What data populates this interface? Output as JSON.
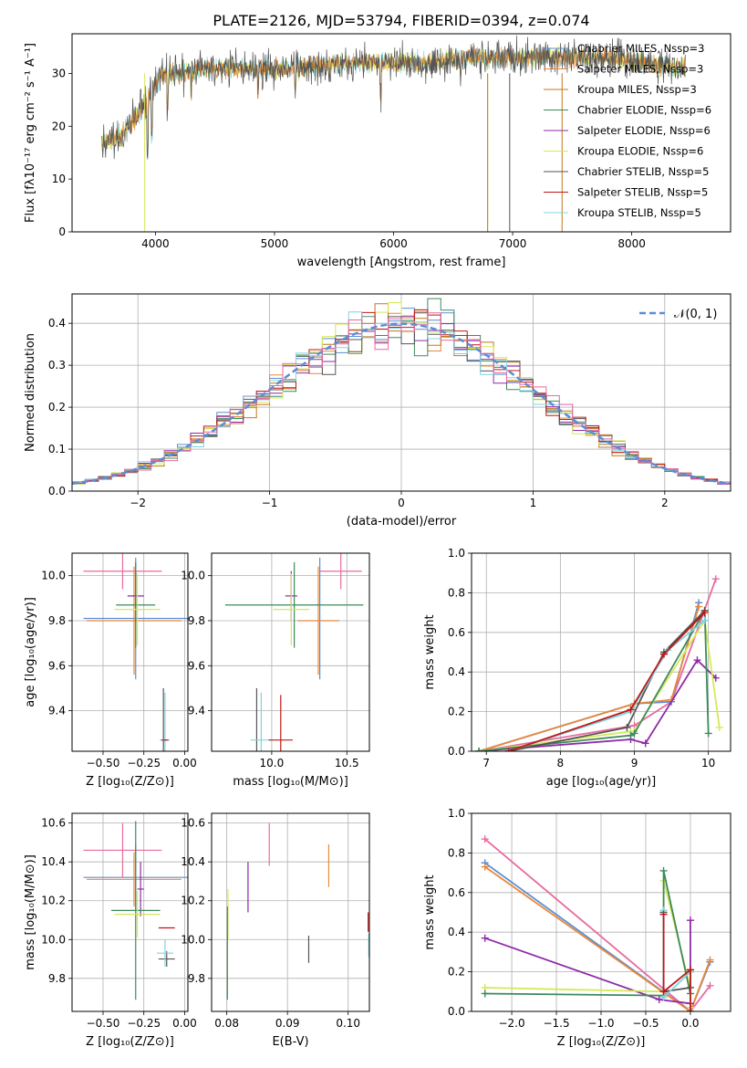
{
  "title": "PLATE=2126, MJD=53794, FIBERID=0394, z=0.074",
  "colors": {
    "Chabrier MILES": "#5b8dd6",
    "Salpeter MILES": "#e8883a",
    "Kroupa MILES": "#c2781f",
    "Chabrier ELODIE": "#3d8a5a",
    "Salpeter ELODIE": "#8e2aa8",
    "Kroupa ELODIE": "#d6e85a",
    "Chabrier STELIB": "#555555",
    "Salpeter STELIB": "#c01818",
    "Kroupa STELIB": "#7fd4e0",
    "pink": "#e86aa0",
    "normal": "#5b8dd6"
  },
  "chart_data": [
    {
      "id": "spectrum",
      "type": "line",
      "xlabel": "wavelength [Angstrom, rest frame]",
      "ylabel": "Flux [fλ10⁻¹⁷ erg cm⁻² s⁻¹ A⁻¹]",
      "xlim": [
        3300,
        8830
      ],
      "ylim": [
        0,
        37.5
      ],
      "xticks": [
        4000,
        5000,
        6000,
        7000,
        8000
      ],
      "yticks": [
        0,
        10,
        20,
        30
      ],
      "grid": false,
      "legend_position": "right",
      "legend": [
        {
          "label": "Chabrier MILES, N_SSP=3",
          "color": "#5b8dd6"
        },
        {
          "label": "Salpeter MILES, N_SSP=3",
          "color": "#e8883a"
        },
        {
          "label": "Kroupa MILES, N_SSP=3",
          "color": "#c2781f"
        },
        {
          "label": "Chabrier ELODIE, N_SSP=6",
          "color": "#3d8a5a"
        },
        {
          "label": "Salpeter ELODIE, N_SSP=6",
          "color": "#8e2aa8"
        },
        {
          "label": "Kroupa ELODIE, N_SSP=6",
          "color": "#d6e85a"
        },
        {
          "label": "Chabrier STELIB, N_SSP=5",
          "color": "#555555"
        },
        {
          "label": "Salpeter STELIB, N_SSP=5",
          "color": "#c01818"
        },
        {
          "label": "Kroupa STELIB, N_SSP=5",
          "color": "#7fd4e0"
        }
      ],
      "continuum": {
        "wavelength": [
          3550,
          3700,
          3850,
          3950,
          4050,
          4200,
          4400,
          4600,
          4800,
          5000,
          5200,
          5500,
          5800,
          6000,
          6300,
          6600,
          6900,
          7200,
          7500,
          7800,
          8100,
          8400
        ],
        "flux": [
          17,
          18,
          22,
          26,
          30,
          30,
          31,
          31,
          31,
          31,
          31,
          32,
          32,
          32,
          32,
          33,
          33,
          33,
          33,
          33,
          32,
          31
        ]
      }
    },
    {
      "id": "residuals",
      "type": "histogram",
      "xlabel": "(data-model)/error",
      "ylabel": "Normed distribution",
      "xlim": [
        -2.5,
        2.5
      ],
      "ylim": [
        0,
        0.47
      ],
      "xticks": [
        -2,
        -1,
        0,
        1,
        2
      ],
      "yticks": [
        0.0,
        0.1,
        0.2,
        0.3,
        0.4
      ],
      "grid": true,
      "legend": [
        {
          "label": "𝒩(0, 1)",
          "color": "#5b8dd6",
          "style": "dashed"
        }
      ],
      "bin_width": 0.1,
      "curve": {
        "mean": 0,
        "sigma": 1
      }
    },
    {
      "id": "age-vs-Z",
      "type": "errorbar",
      "xlabel": "Z [log₁₀(Z/Z⊙)]",
      "ylabel": "age  [log₁₀(age/yr)]",
      "xlim": [
        -0.69,
        0.02
      ],
      "ylim": [
        9.22,
        10.1
      ],
      "xticks": [
        -0.5,
        -0.25,
        0.0
      ],
      "xticklabels": [
        "−0.50",
        "−0.25",
        "0.00"
      ],
      "yticks": [
        9.4,
        9.6,
        9.8,
        10.0
      ],
      "grid": true,
      "points": [
        {
          "color": "#e86aa0",
          "x": -0.38,
          "xerr": 0.24,
          "y": 10.02,
          "yerr": 0.08
        },
        {
          "color": "#5b8dd6",
          "x": -0.3,
          "xerr": 0.32,
          "y": 9.81,
          "yerr": 0.27
        },
        {
          "color": "#e8883a",
          "x": -0.31,
          "xerr": 0.29,
          "y": 9.8,
          "yerr": 0.24
        },
        {
          "color": "#8e2aa8",
          "x": -0.3,
          "xerr": 0.05,
          "y": 9.91,
          "yerr": 0.11
        },
        {
          "color": "#3d8a5a",
          "x": -0.3,
          "xerr": 0.12,
          "y": 9.87,
          "yerr": 0.19
        },
        {
          "color": "#d6e85a",
          "x": -0.29,
          "xerr": 0.14,
          "y": 9.85,
          "yerr": 0.16
        },
        {
          "color": "#555555",
          "x": -0.13,
          "xerr": 0.02,
          "y": 9.27,
          "yerr": 0.23
        },
        {
          "color": "#7fd4e0",
          "x": -0.12,
          "xerr": 0.03,
          "y": 9.27,
          "yerr": 0.21
        },
        {
          "color": "#c01818",
          "x": -0.12,
          "xerr": 0.02,
          "y": 9.27,
          "yerr": 0.0
        }
      ]
    },
    {
      "id": "age-vs-mass",
      "type": "errorbar",
      "xlabel": "mass [log₁₀(M/M⊙)]",
      "ylabel": "",
      "xlim": [
        9.6,
        10.65
      ],
      "ylim": [
        9.22,
        10.1
      ],
      "xticks": [
        10.0,
        10.5
      ],
      "xticklabels": [
        "10.0",
        "10.5"
      ],
      "yticks": [
        9.4,
        9.6,
        9.8,
        10.0
      ],
      "grid": true,
      "points": [
        {
          "color": "#e86aa0",
          "x": 10.46,
          "xerr": 0.14,
          "y": 10.02,
          "yerr": 0.08
        },
        {
          "color": "#5b8dd6",
          "x": 10.32,
          "xerr": 0.0,
          "y": 9.81,
          "yerr": 0.27
        },
        {
          "color": "#e8883a",
          "x": 10.31,
          "xerr": 0.14,
          "y": 9.8,
          "yerr": 0.24
        },
        {
          "color": "#8e2aa8",
          "x": 10.13,
          "xerr": 0.04,
          "y": 9.91,
          "yerr": 0.11
        },
        {
          "color": "#3d8a5a",
          "x": 10.15,
          "xerr": 0.46,
          "y": 9.87,
          "yerr": 0.19
        },
        {
          "color": "#d6e85a",
          "x": 10.13,
          "xerr": 0.12,
          "y": 9.85,
          "yerr": 0.16
        },
        {
          "color": "#555555",
          "x": 9.9,
          "xerr": 0.0,
          "y": 9.27,
          "yerr": 0.23
        },
        {
          "color": "#7fd4e0",
          "x": 9.93,
          "xerr": 0.07,
          "y": 9.27,
          "yerr": 0.21
        },
        {
          "color": "#c01818",
          "x": 10.06,
          "xerr": 0.08,
          "y": 9.27,
          "yerr": 0.2
        }
      ]
    },
    {
      "id": "weight-vs-age",
      "type": "line",
      "xlabel": "age  [log₁₀(age/yr)]",
      "ylabel": "mass weight",
      "xlim": [
        6.8,
        10.3
      ],
      "ylim": [
        0,
        1.0
      ],
      "xticks": [
        7,
        8,
        9,
        10
      ],
      "xticklabels": [
        "7",
        "8",
        "9",
        "10"
      ],
      "yticks": [
        0.0,
        0.2,
        0.4,
        0.6,
        0.8,
        1.0
      ],
      "grid": true,
      "series": [
        {
          "color": "#e86aa0",
          "x": [
            6.9,
            9.0,
            9.5,
            10.1
          ],
          "y": [
            0.0,
            0.13,
            0.25,
            0.87
          ]
        },
        {
          "color": "#5b8dd6",
          "x": [
            6.9,
            9.0,
            9.5,
            9.87
          ],
          "y": [
            0.0,
            0.24,
            0.25,
            0.75
          ]
        },
        {
          "color": "#e8883a",
          "x": [
            6.9,
            9.0,
            9.5,
            9.87
          ],
          "y": [
            0.0,
            0.24,
            0.26,
            0.73
          ]
        },
        {
          "color": "#8e2aa8",
          "x": [
            6.9,
            8.95,
            9.15,
            9.85,
            10.1
          ],
          "y": [
            0.0,
            0.06,
            0.04,
            0.46,
            0.37
          ]
        },
        {
          "color": "#d6e85a",
          "x": [
            6.9,
            8.95,
            9.0,
            9.95,
            10.15
          ],
          "y": [
            0.0,
            0.1,
            0.1,
            0.66,
            0.12
          ]
        },
        {
          "color": "#3d8a5a",
          "x": [
            6.9,
            8.95,
            9.0,
            9.95,
            10.0
          ],
          "y": [
            0.0,
            0.08,
            0.09,
            0.71,
            0.09
          ]
        },
        {
          "color": "#555555",
          "x": [
            7.3,
            8.9,
            9.4,
            9.95
          ],
          "y": [
            0.0,
            0.12,
            0.5,
            0.71
          ]
        },
        {
          "color": "#7fd4e0",
          "x": [
            7.3,
            8.95,
            9.45,
            9.95
          ],
          "y": [
            0.0,
            0.2,
            0.51,
            0.66
          ]
        },
        {
          "color": "#c01818",
          "x": [
            7.3,
            8.95,
            9.4,
            9.95
          ],
          "y": [
            0.0,
            0.21,
            0.49,
            0.7
          ]
        }
      ]
    },
    {
      "id": "mass-vs-Z",
      "type": "errorbar",
      "xlabel": "Z [log₁₀(Z/Z⊙)]",
      "ylabel": "mass [log₁₀(M/M⊙)]",
      "xlim": [
        -0.69,
        0.02
      ],
      "ylim": [
        9.63,
        10.65
      ],
      "xticks": [
        -0.5,
        -0.25,
        0.0
      ],
      "xticklabels": [
        "−0.50",
        "−0.25",
        "0.00"
      ],
      "yticks": [
        9.8,
        10.0,
        10.2,
        10.4,
        10.6
      ],
      "grid": true,
      "points": [
        {
          "color": "#e86aa0",
          "x": -0.38,
          "xerr": 0.24,
          "y": 10.46,
          "yerr": 0.14
        },
        {
          "color": "#5b8dd6",
          "x": -0.3,
          "xerr": 0.32,
          "y": 10.32,
          "yerr": 0.17
        },
        {
          "color": "#e8883a",
          "x": -0.31,
          "xerr": 0.29,
          "y": 10.31,
          "yerr": 0.14
        },
        {
          "color": "#8e2aa8",
          "x": -0.27,
          "xerr": 0.02,
          "y": 10.26,
          "yerr": 0.14
        },
        {
          "color": "#3d8a5a",
          "x": -0.3,
          "xerr": 0.15,
          "y": 10.15,
          "yerr": 0.46
        },
        {
          "color": "#d6e85a",
          "x": -0.29,
          "xerr": 0.14,
          "y": 10.13,
          "yerr": 0.12
        },
        {
          "color": "#555555",
          "x": -0.11,
          "xerr": 0.05,
          "y": 9.9,
          "yerr": 0.04
        },
        {
          "color": "#7fd4e0",
          "x": -0.12,
          "xerr": 0.05,
          "y": 9.93,
          "yerr": 0.07
        },
        {
          "color": "#c01818",
          "x": -0.11,
          "xerr": 0.05,
          "y": 10.06,
          "yerr": 0.0
        }
      ]
    },
    {
      "id": "mass-vs-ebv",
      "type": "errorbar",
      "xlabel": "E(B-V)",
      "ylabel": "",
      "xlim": [
        0.0775,
        0.1035
      ],
      "ylim": [
        9.63,
        10.65
      ],
      "xticks": [
        0.08,
        0.09,
        0.1
      ],
      "xticklabels": [
        "0.08",
        "0.09",
        "0.10"
      ],
      "yticks": [
        9.8,
        10.0,
        10.2,
        10.4,
        10.6
      ],
      "grid": true,
      "points": [
        {
          "color": "#e86aa0",
          "x": 0.087,
          "xerr": 0.0,
          "y": 10.49,
          "yerr": 0.11
        },
        {
          "color": "#8e2aa8",
          "x": 0.0835,
          "xerr": 0.0,
          "y": 10.27,
          "yerr": 0.13
        },
        {
          "color": "#e8883a",
          "x": 0.0968,
          "xerr": 0.0,
          "y": 10.38,
          "yerr": 0.11
        },
        {
          "color": "#d6e85a",
          "x": 0.0802,
          "xerr": 0.0,
          "y": 10.13,
          "yerr": 0.13
        },
        {
          "color": "#3d8a5a",
          "x": 0.0801,
          "xerr": 0.0,
          "y": 9.93,
          "yerr": 0.24
        },
        {
          "color": "#555555",
          "x": 0.0935,
          "xerr": 0.0,
          "y": 9.95,
          "yerr": 0.07
        },
        {
          "color": "#c01818",
          "x": 0.1033,
          "xerr": 0.0,
          "y": 10.09,
          "yerr": 0.05
        },
        {
          "color": "#7fd4e0",
          "x": 0.1034,
          "xerr": 0.0,
          "y": 9.97,
          "yerr": 0.06
        }
      ]
    },
    {
      "id": "weight-vs-Z",
      "type": "line",
      "xlabel": "Z [log₁₀(Z/Z⊙)]",
      "ylabel": "mass weight",
      "xlim": [
        -2.45,
        0.45
      ],
      "ylim": [
        0,
        1.0
      ],
      "xticks": [
        -2.0,
        -1.5,
        -1.0,
        -0.5,
        0.0
      ],
      "xticklabels": [
        "−2.0",
        "−1.5",
        "−1.0",
        "−0.5",
        "0.0"
      ],
      "yticks": [
        0.0,
        0.2,
        0.4,
        0.6,
        0.8,
        1.0
      ],
      "grid": true,
      "series": [
        {
          "color": "#e86aa0",
          "x": [
            -2.3,
            0.0,
            0.22
          ],
          "y": [
            0.87,
            0.0,
            0.13
          ]
        },
        {
          "color": "#5b8dd6",
          "x": [
            -2.3,
            0.0,
            0.22
          ],
          "y": [
            0.75,
            0.0,
            0.25
          ]
        },
        {
          "color": "#e8883a",
          "x": [
            -2.3,
            0.0,
            0.22
          ],
          "y": [
            0.73,
            0.0,
            0.26
          ]
        },
        {
          "color": "#8e2aa8",
          "x": [
            -2.3,
            -0.35,
            0.0,
            0.0
          ],
          "y": [
            0.37,
            0.06,
            0.04,
            0.46
          ]
        },
        {
          "color": "#d6e85a",
          "x": [
            -2.3,
            -0.3,
            -0.3,
            0.0,
            0.0
          ],
          "y": [
            0.12,
            0.1,
            0.66,
            0.12,
            0.02
          ]
        },
        {
          "color": "#3d8a5a",
          "x": [
            -2.3,
            -0.3,
            -0.3,
            0.0,
            0.0
          ],
          "y": [
            0.09,
            0.08,
            0.71,
            0.09,
            0.2
          ]
        },
        {
          "color": "#555555",
          "x": [
            -0.3,
            -0.3,
            0.0,
            0.0
          ],
          "y": [
            0.5,
            0.1,
            0.12,
            0.21
          ]
        },
        {
          "color": "#7fd4e0",
          "x": [
            -0.3,
            -0.3,
            0.0,
            0.0
          ],
          "y": [
            0.51,
            0.07,
            0.2,
            0.0
          ]
        },
        {
          "color": "#c01818",
          "x": [
            -0.3,
            -0.3,
            0.0,
            0.0
          ],
          "y": [
            0.49,
            0.1,
            0.21,
            0.0
          ]
        }
      ]
    }
  ]
}
